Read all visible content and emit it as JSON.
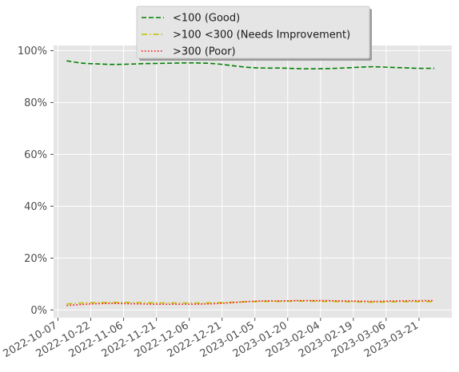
{
  "chart_data": {
    "type": "line",
    "title": "",
    "xlabel": "",
    "ylabel": "",
    "x_dates": [
      "2022-10-11",
      "2022-10-18",
      "2022-10-25",
      "2022-11-01",
      "2022-11-08",
      "2022-11-15",
      "2022-11-22",
      "2022-11-29",
      "2022-12-06",
      "2022-12-13",
      "2022-12-20",
      "2022-12-27",
      "2023-01-03",
      "2023-01-10",
      "2023-01-17",
      "2023-01-24",
      "2023-01-31",
      "2023-02-07",
      "2023-02-14",
      "2023-02-21",
      "2023-02-28",
      "2023-03-07",
      "2023-03-14",
      "2023-03-21",
      "2023-03-28"
    ],
    "xlim": [
      "2022-10-05",
      "2023-04-05"
    ],
    "xticks": [
      "2022-10-07",
      "2022-10-22",
      "2022-11-06",
      "2022-11-21",
      "2022-12-06",
      "2022-12-21",
      "2023-01-05",
      "2023-01-20",
      "2023-02-04",
      "2023-02-19",
      "2023-03-06",
      "2023-03-21"
    ],
    "ylim": [
      -0.03,
      1.02
    ],
    "yticks": [
      0,
      0.2,
      0.4,
      0.6,
      0.8,
      1.0
    ],
    "ytick_labels": [
      "0%",
      "20%",
      "40%",
      "60%",
      "80%",
      "100%"
    ],
    "grid": true,
    "legend_position": "top-center",
    "series": [
      {
        "name": "<100 (Good)",
        "color": "#008000",
        "style": "dashed",
        "values": [
          0.961,
          0.952,
          0.949,
          0.947,
          0.948,
          0.95,
          0.951,
          0.952,
          0.953,
          0.952,
          0.948,
          0.941,
          0.935,
          0.933,
          0.933,
          0.931,
          0.93,
          0.931,
          0.933,
          0.936,
          0.938,
          0.936,
          0.934,
          0.932,
          0.932
        ]
      },
      {
        "name": ">100  <300 (Needs Improvement)",
        "color": "#bfbf00",
        "style": "dashdot",
        "values": [
          0.023,
          0.027,
          0.028,
          0.029,
          0.029,
          0.028,
          0.027,
          0.027,
          0.027,
          0.027,
          0.028,
          0.03,
          0.032,
          0.033,
          0.033,
          0.034,
          0.034,
          0.033,
          0.032,
          0.031,
          0.03,
          0.031,
          0.032,
          0.032,
          0.032
        ]
      },
      {
        "name": ">300 (Poor)",
        "color": "#ff0000",
        "style": "dotted",
        "values": [
          0.017,
          0.021,
          0.024,
          0.025,
          0.024,
          0.023,
          0.022,
          0.022,
          0.022,
          0.023,
          0.025,
          0.029,
          0.033,
          0.035,
          0.035,
          0.036,
          0.036,
          0.036,
          0.035,
          0.034,
          0.033,
          0.034,
          0.035,
          0.036,
          0.036
        ]
      }
    ]
  }
}
